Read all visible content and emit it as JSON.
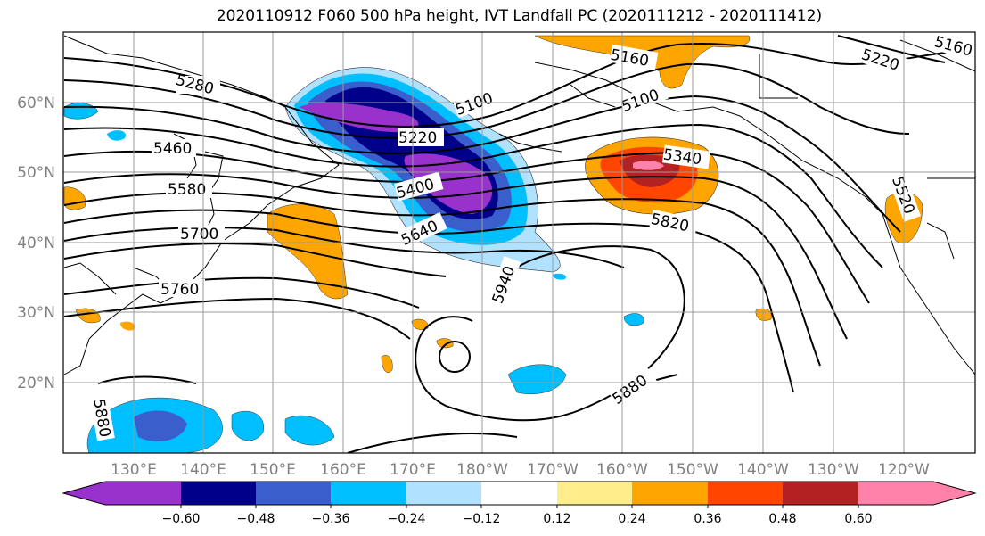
{
  "title": "2020110912 F060 500 hPa height, IVT Landfall PC (2020111212 - 2020111412)",
  "map": {
    "lon_range": [
      "120°E",
      "115°W"
    ],
    "lat_range": [
      "10°N",
      "70°N"
    ],
    "grid": true,
    "x_ticks": [
      "130°E",
      "140°E",
      "150°E",
      "160°E",
      "170°E",
      "180°W",
      "170°W",
      "160°W",
      "150°W",
      "140°W",
      "130°W",
      "120°W"
    ],
    "y_ticks": [
      "20°N",
      "30°N",
      "40°N",
      "50°N",
      "60°N"
    ],
    "contour_labels": [
      "5280",
      "5460",
      "5580",
      "5700",
      "5760",
      "5220",
      "5100",
      "5400",
      "5640",
      "5940",
      "5160",
      "5100",
      "5340",
      "5820",
      "5880",
      "5220",
      "5160",
      "5520",
      "5880"
    ]
  },
  "colorbar": {
    "ticks": [
      "−0.60",
      "−0.48",
      "−0.36",
      "−0.24",
      "−0.12",
      "0.12",
      "0.24",
      "0.36",
      "0.48",
      "0.60"
    ],
    "colors": [
      "#9932CC",
      "#00008B",
      "#3A5FCD",
      "#00BFFF",
      "#B0E2FF",
      "#FFFFFF",
      "#FFEC8B",
      "#FFA500",
      "#FF4500",
      "#B22222",
      "#FF82AB"
    ]
  }
}
